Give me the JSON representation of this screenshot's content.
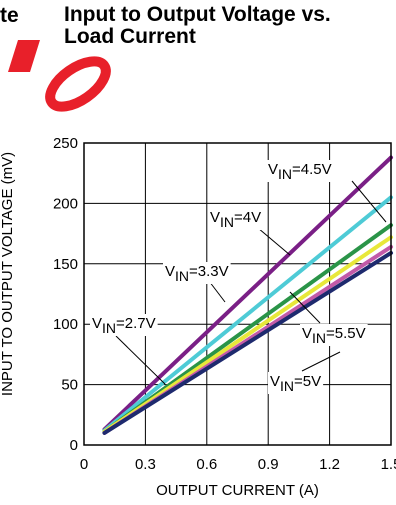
{
  "header": {
    "left_fragment": "te",
    "title_line1": "Input to Output Voltage vs.",
    "title_line2": "Load Current"
  },
  "watermark_color": "#e8202a",
  "chart_data": {
    "type": "line",
    "xlabel": "OUTPUT CURRENT (A)",
    "ylabel": "INPUT TO OUTPUT VOLTAGE (mV)",
    "xlim": [
      0,
      1.5
    ],
    "ylim": [
      0,
      250
    ],
    "xticks": [
      0,
      0.3,
      0.6,
      0.9,
      1.2,
      1.5
    ],
    "xtick_labels": [
      "0",
      "0.3",
      "0.6",
      "0.9",
      "1.2",
      "1.5"
    ],
    "yticks": [
      0,
      50,
      100,
      150,
      200,
      250
    ],
    "ytick_labels": [
      "0",
      "50",
      "100",
      "150",
      "200",
      "250"
    ],
    "grid": true,
    "series": [
      {
        "name": "VIN=2.7V",
        "color": "#7a1f86",
        "x": [
          0.1,
          1.5
        ],
        "y": [
          13,
          238
        ]
      },
      {
        "name": "VIN=3.3V",
        "color": "#4ecbd6",
        "x": [
          0.1,
          1.5
        ],
        "y": [
          12,
          205
        ]
      },
      {
        "name": "VIN=4V",
        "color": "#2a9448",
        "x": [
          0.1,
          1.5
        ],
        "y": [
          11,
          182
        ]
      },
      {
        "name": "VIN=4.5V",
        "color": "#e8e83a",
        "x": [
          0.1,
          1.5
        ],
        "y": [
          11,
          172
        ]
      },
      {
        "name": "VIN=5V",
        "color": "#c25aa8",
        "x": [
          0.1,
          1.5
        ],
        "y": [
          10,
          164
        ]
      },
      {
        "name": "VIN=5.5V",
        "color": "#1e2a6e",
        "x": [
          0.1,
          1.5
        ],
        "y": [
          10,
          159
        ]
      }
    ],
    "annotations": [
      {
        "prefix": "V",
        "sub": "IN",
        "value": "=4.5V"
      },
      {
        "prefix": "V",
        "sub": "IN",
        "value": "=4V"
      },
      {
        "prefix": "V",
        "sub": "IN",
        "value": "=3.3V"
      },
      {
        "prefix": "V",
        "sub": "IN",
        "value": "=2.7V"
      },
      {
        "prefix": "V",
        "sub": "IN",
        "value": "=5.5V"
      },
      {
        "prefix": "V",
        "sub": "IN",
        "value": "=5V"
      }
    ]
  }
}
